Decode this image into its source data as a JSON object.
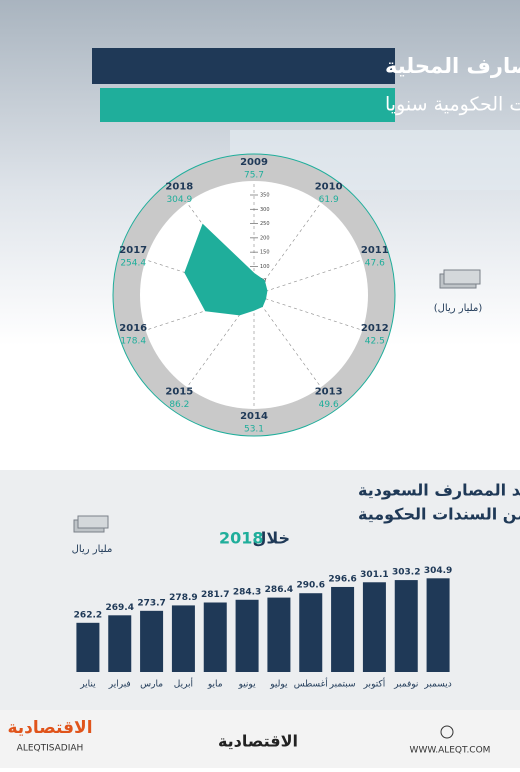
{
  "header": {
    "title": "استثمارات المصارف المحلية",
    "subtitle": "في السندات الحكومية سنويا"
  },
  "chart_data": [
    {
      "type": "radar",
      "unit": "(مليار ريال)",
      "categories": [
        "2009",
        "2010",
        "2011",
        "2012",
        "2013",
        "2014",
        "2015",
        "2016",
        "2017",
        "2018"
      ],
      "values": [
        75.7,
        61.9,
        47.6,
        42.5,
        49.6,
        53.1,
        86.2,
        178.4,
        254.4,
        304.9
      ],
      "color": "#1fae9b",
      "rlim": [
        0,
        350
      ],
      "rticks": [
        50,
        100,
        150,
        200,
        250,
        300,
        350
      ]
    },
    {
      "type": "bar",
      "title_lines": [
        "رصيد المصارف السعودية",
        "من السندات الحكومية"
      ],
      "title_prefix": "خلال",
      "title_year": "2018",
      "unit": "مليار ريال",
      "categories": [
        "يناير",
        "فبراير",
        "مارس",
        "أبريل",
        "مايو",
        "يونيو",
        "يوليو",
        "أغسطس",
        "سبتمبر",
        "أكتوبر",
        "نوفمبر",
        "ديسمبر"
      ],
      "values": [
        262.2,
        269.4,
        273.7,
        278.9,
        281.7,
        284.3,
        286.4,
        290.6,
        296.6,
        301.1,
        303.2,
        304.9
      ],
      "color": "#1f3957",
      "ylim": [
        215,
        310
      ]
    }
  ],
  "footer": {
    "logo": "الاقتصادية",
    "brand": "ALEQTISADIAH",
    "center": "الاقتصادية",
    "site": "WWW.ALEQT.COM"
  }
}
